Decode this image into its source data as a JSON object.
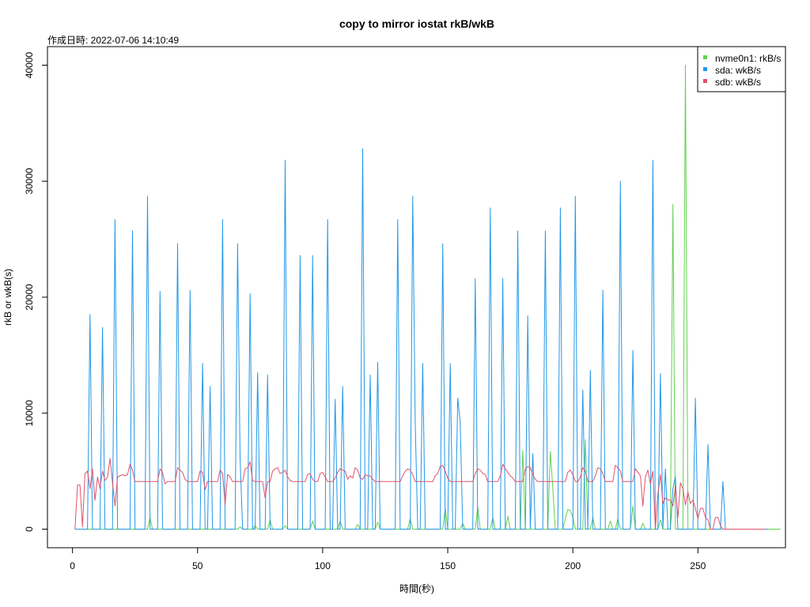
{
  "chart_data": {
    "type": "line",
    "title": "copy to mirror iostat rkB/wkB",
    "subtitle": "作成日時: 2022-07-06 14:10:49",
    "xlabel": "時間(秒)",
    "ylabel": "rkB or wkB(s)",
    "xlim": [
      -10,
      285
    ],
    "ylim": [
      -1600,
      41600
    ],
    "xticks": [
      0,
      50,
      100,
      150,
      200,
      250
    ],
    "yticks": [
      0,
      10000,
      20000,
      30000,
      40000
    ],
    "legend_position": "top-right",
    "grid": false,
    "series": [
      {
        "name": "nvme0n1: rkB/s",
        "color": "#61D04F",
        "x_start": 1,
        "values": [
          0,
          0,
          0,
          0,
          0,
          0,
          0,
          0,
          0,
          0,
          0,
          0,
          0,
          0,
          0,
          0,
          0,
          0,
          0,
          0,
          0,
          0,
          0,
          0,
          0,
          0,
          0,
          0,
          0,
          0,
          1000,
          0,
          0,
          0,
          0,
          0,
          0,
          0,
          0,
          0,
          0,
          0,
          0,
          0,
          0,
          0,
          0,
          0,
          0,
          0,
          0,
          0,
          0,
          0,
          0,
          0,
          0,
          0,
          0,
          0,
          0,
          0,
          0,
          0,
          0,
          0,
          200,
          0,
          0,
          0,
          0,
          0,
          300,
          0,
          0,
          0,
          0,
          0,
          800,
          0,
          0,
          0,
          0,
          0,
          300,
          0,
          0,
          0,
          0,
          0,
          0,
          0,
          0,
          0,
          0,
          700,
          0,
          0,
          0,
          0,
          0,
          0,
          0,
          0,
          0,
          0,
          700,
          0,
          0,
          0,
          0,
          0,
          0,
          400,
          0,
          0,
          0,
          0,
          0,
          0,
          0,
          600,
          0,
          0,
          0,
          0,
          0,
          0,
          0,
          0,
          0,
          0,
          0,
          0,
          900,
          0,
          0,
          0,
          0,
          0,
          0,
          0,
          0,
          0,
          0,
          0,
          0,
          0,
          1800,
          0,
          0,
          0,
          0,
          0,
          0,
          500,
          0,
          0,
          0,
          0,
          0,
          1900,
          0,
          0,
          0,
          0,
          0,
          1000,
          0,
          0,
          0,
          0,
          0,
          1100,
          0,
          0,
          0,
          0,
          0,
          6800,
          0,
          0,
          0,
          0,
          0,
          0,
          0,
          0,
          0,
          0,
          6700,
          3500,
          0,
          0,
          0,
          0,
          900,
          1700,
          1600,
          1000,
          0,
          0,
          0,
          0,
          7700,
          0,
          0,
          1000,
          0,
          0,
          0,
          0,
          0,
          0,
          700,
          0,
          0,
          900,
          0,
          0,
          0,
          0,
          0,
          2000,
          0,
          0,
          0,
          500,
          0,
          0,
          0,
          0,
          0,
          0,
          800,
          0,
          0,
          0,
          0,
          28000,
          0,
          0,
          0,
          0,
          40000,
          0,
          0,
          0,
          0,
          0,
          0,
          0,
          0,
          0,
          0,
          0,
          0,
          0,
          0,
          0,
          0,
          0,
          0,
          0,
          0,
          0,
          0,
          0,
          0,
          0,
          0,
          0,
          0,
          0,
          0,
          0,
          0,
          0,
          0,
          0,
          0,
          0,
          0
        ]
      },
      {
        "name": "sda: wkB/s",
        "color": "#2297E6",
        "x_start": 1,
        "values": [
          0,
          0,
          0,
          0,
          0,
          0,
          18500,
          0,
          0,
          0,
          0,
          17400,
          0,
          0,
          0,
          0,
          26700,
          0,
          0,
          0,
          0,
          0,
          0,
          25700,
          0,
          0,
          0,
          0,
          0,
          28700,
          0,
          0,
          0,
          0,
          20500,
          0,
          0,
          0,
          0,
          0,
          0,
          24600,
          0,
          0,
          0,
          0,
          20600,
          0,
          0,
          0,
          0,
          14300,
          0,
          0,
          12300,
          0,
          0,
          0,
          0,
          26700,
          0,
          0,
          0,
          0,
          0,
          24600,
          6100,
          0,
          0,
          0,
          20300,
          0,
          0,
          13500,
          0,
          0,
          0,
          13300,
          0,
          0,
          0,
          0,
          0,
          0,
          31800,
          0,
          0,
          0,
          0,
          0,
          23600,
          0,
          0,
          0,
          0,
          23600,
          0,
          0,
          0,
          0,
          0,
          26700,
          0,
          0,
          11200,
          0,
          0,
          12300,
          0,
          0,
          0,
          0,
          0,
          0,
          0,
          32800,
          0,
          0,
          13300,
          0,
          0,
          14400,
          0,
          0,
          0,
          0,
          0,
          0,
          0,
          26700,
          0,
          0,
          0,
          0,
          0,
          28700,
          9200,
          0,
          0,
          14300,
          0,
          0,
          0,
          0,
          0,
          0,
          0,
          24600,
          0,
          0,
          14300,
          0,
          0,
          11300,
          9200,
          0,
          0,
          0,
          0,
          0,
          21600,
          0,
          0,
          0,
          0,
          0,
          27700,
          0,
          0,
          0,
          0,
          21600,
          0,
          0,
          0,
          0,
          0,
          25700,
          0,
          0,
          0,
          18400,
          0,
          6500,
          0,
          0,
          0,
          0,
          25700,
          0,
          0,
          0,
          0,
          0,
          27700,
          0,
          0,
          0,
          0,
          0,
          28700,
          0,
          0,
          12000,
          0,
          0,
          13700,
          0,
          0,
          0,
          0,
          20600,
          0,
          0,
          0,
          0,
          0,
          0,
          30000,
          0,
          0,
          0,
          0,
          15400,
          0,
          0,
          0,
          0,
          0,
          0,
          0,
          31800,
          0,
          0,
          13400,
          0,
          5200,
          0,
          0,
          3500,
          4500,
          0,
          0,
          0,
          0,
          0,
          0,
          0,
          11300,
          0,
          0,
          0,
          0,
          7300,
          0,
          0,
          0,
          0,
          0,
          4100,
          0,
          0,
          0,
          0,
          0,
          0,
          0,
          0,
          0,
          0,
          0,
          0,
          0,
          0,
          0,
          0,
          0,
          0
        ]
      },
      {
        "name": "sdb: wkB/s",
        "color": "#DF536B",
        "x_start": 1,
        "values": [
          0,
          3800,
          3800,
          200,
          4800,
          5000,
          3500,
          5200,
          2500,
          4500,
          3500,
          5000,
          4200,
          4500,
          6100,
          4000,
          2000,
          4500,
          4600,
          4700,
          4600,
          4700,
          5600,
          5100,
          4100,
          4100,
          4100,
          4100,
          4100,
          4100,
          4100,
          4100,
          4100,
          4100,
          5200,
          4900,
          3900,
          4100,
          4100,
          4100,
          4100,
          5300,
          5100,
          4900,
          4300,
          4100,
          4100,
          4100,
          4100,
          4100,
          5000,
          4900,
          3400,
          4100,
          4100,
          4100,
          4100,
          4100,
          5100,
          4800,
          2100,
          4700,
          4500,
          4100,
          4100,
          4100,
          4100,
          4100,
          5200,
          5300,
          5800,
          4200,
          4100,
          4100,
          4100,
          4100,
          2700,
          4100,
          4100,
          5000,
          5200,
          5300,
          4800,
          4900,
          5100,
          4500,
          4200,
          4100,
          4100,
          4100,
          4100,
          4100,
          4100,
          4700,
          4800,
          4300,
          4100,
          4100,
          4800,
          4900,
          4500,
          4100,
          4100,
          4100,
          4400,
          4900,
          5200,
          5100,
          5000,
          4300,
          4600,
          4400,
          5300,
          5100,
          4400,
          4300,
          4700,
          4600,
          4600,
          4300,
          4100,
          4100,
          4100,
          4100,
          4100,
          4100,
          4100,
          4100,
          4100,
          4100,
          4100,
          4600,
          5000,
          5200,
          5100,
          4700,
          4100,
          4100,
          4100,
          4100,
          4100,
          4100,
          4100,
          4100,
          4600,
          4800,
          5400,
          5500,
          5000,
          4400,
          4100,
          4100,
          4100,
          4100,
          4100,
          4100,
          4100,
          4100,
          4100,
          4100,
          4800,
          5200,
          5100,
          4800,
          4700,
          4100,
          4100,
          4100,
          4100,
          4100,
          4600,
          5600,
          5200,
          4900,
          4600,
          4400,
          4100,
          4100,
          4100,
          4100,
          5200,
          5400,
          5300,
          4700,
          4300,
          4100,
          4100,
          4100,
          4100,
          4100,
          4100,
          4100,
          4100,
          4100,
          4100,
          4100,
          4100,
          4900,
          5100,
          4700,
          4100,
          4100,
          4500,
          5300,
          5000,
          4100,
          4100,
          4100,
          4600,
          5300,
          5200,
          4800,
          4100,
          4100,
          4100,
          4100,
          5500,
          5300,
          5000,
          4100,
          4100,
          4100,
          4100,
          4100,
          5200,
          4900,
          4600,
          2000,
          4500,
          5100,
          3900,
          5000,
          0,
          3000,
          4700,
          2200,
          2700,
          2500,
          2500,
          2000,
          3700,
          1000,
          4000,
          3500,
          2100,
          3200,
          2200,
          2500,
          1800,
          900,
          1800,
          1800,
          1000,
          800,
          0,
          0,
          1000,
          1000,
          300,
          0,
          0,
          0,
          0,
          0,
          0,
          0,
          0,
          0,
          0,
          0,
          0,
          0,
          0,
          0,
          0,
          0,
          0
        ]
      }
    ]
  }
}
